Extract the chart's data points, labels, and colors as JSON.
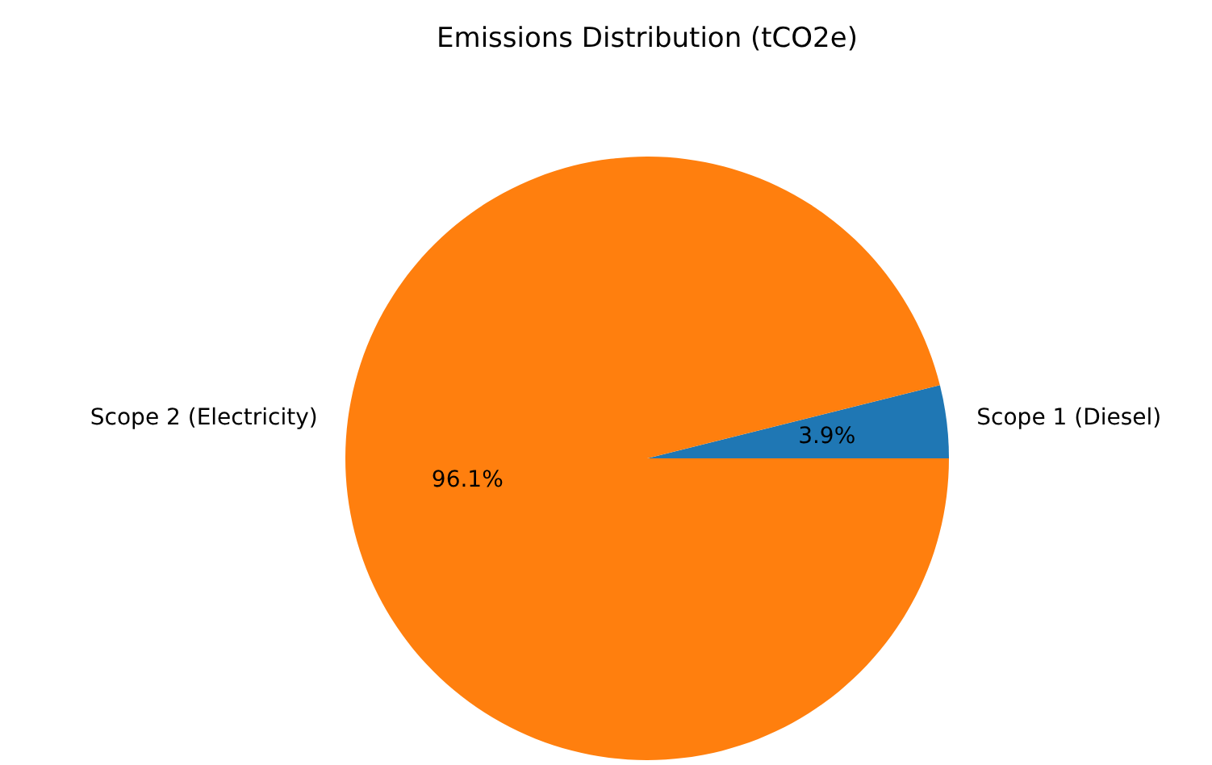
{
  "chart_data": {
    "type": "pie",
    "title": "Emissions Distribution (tCO2e)",
    "categories": [
      "Scope 1 (Diesel)",
      "Scope 2 (Electricity)"
    ],
    "values": [
      3.9,
      96.1
    ],
    "colors": [
      "#1f77b4",
      "#ff7f0e"
    ],
    "value_labels": [
      "3.9%",
      "96.1%"
    ]
  }
}
